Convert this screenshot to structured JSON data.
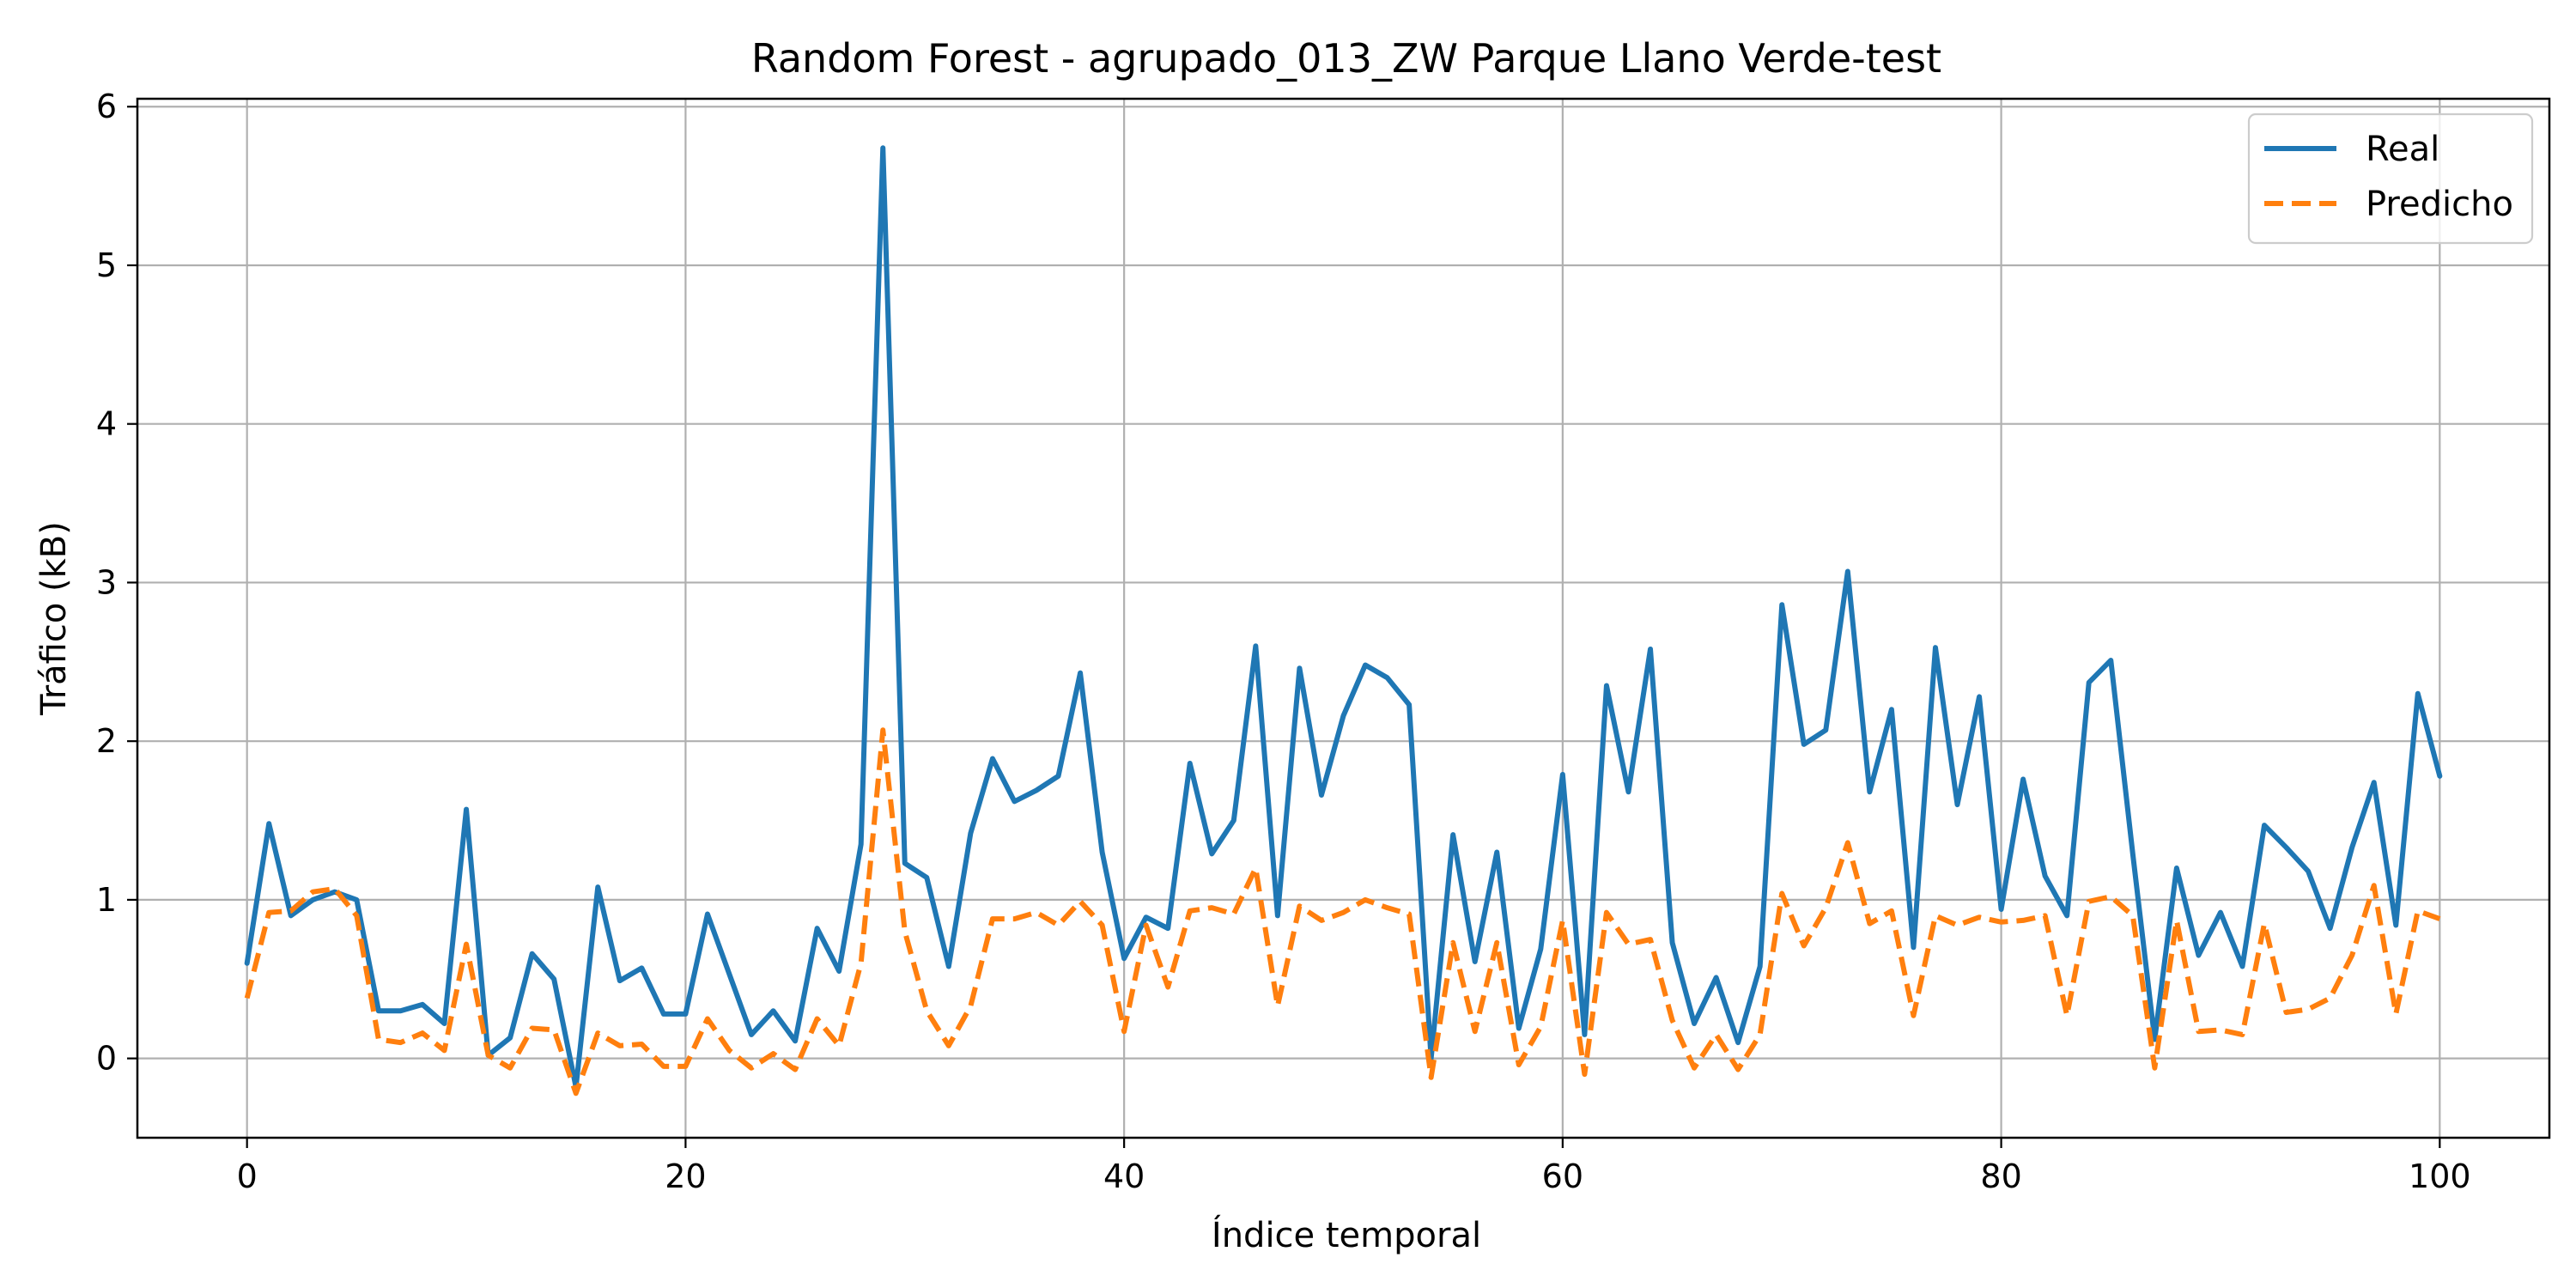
{
  "chart_data": {
    "type": "line",
    "title": "Random Forest - agrupado_013_ZW Parque Llano Verde-test",
    "xlabel": "Índice temporal",
    "ylabel": "Tráfico (kB)",
    "xlim": [
      -5,
      105
    ],
    "ylim": [
      -0.5,
      6.05
    ],
    "xticks": [
      0,
      20,
      40,
      60,
      80,
      100
    ],
    "yticks": [
      0,
      1,
      2,
      3,
      4,
      5,
      6
    ],
    "grid": true,
    "legend_position": "top-right",
    "x": [
      0,
      1,
      2,
      3,
      4,
      5,
      6,
      7,
      8,
      9,
      10,
      11,
      12,
      13,
      14,
      15,
      16,
      17,
      18,
      19,
      20,
      21,
      22,
      23,
      24,
      25,
      26,
      27,
      28,
      29,
      30,
      31,
      32,
      33,
      34,
      35,
      36,
      37,
      38,
      39,
      40,
      41,
      42,
      43,
      44,
      45,
      46,
      47,
      48,
      49,
      50,
      51,
      52,
      53,
      54,
      55,
      56,
      57,
      58,
      59,
      60,
      61,
      62,
      63,
      64,
      65,
      66,
      67,
      68,
      69,
      70,
      71,
      72,
      73,
      74,
      75,
      76,
      77,
      78,
      79,
      80,
      81,
      82,
      83,
      84,
      85,
      86,
      87,
      88,
      89,
      90,
      91,
      92,
      93,
      94,
      95,
      96,
      97,
      98,
      99,
      100
    ],
    "series": [
      {
        "name": "Real",
        "color": "#1f77b4",
        "style": "solid",
        "values": [
          0.6,
          1.48,
          0.9,
          1.0,
          1.05,
          1.0,
          0.3,
          0.3,
          0.34,
          0.22,
          1.57,
          0.02,
          0.13,
          0.66,
          0.5,
          -0.18,
          1.08,
          0.49,
          0.57,
          0.28,
          0.28,
          0.91,
          0.53,
          0.15,
          0.3,
          0.11,
          0.82,
          0.55,
          1.35,
          5.74,
          1.23,
          1.14,
          0.58,
          1.42,
          1.89,
          1.62,
          1.69,
          1.78,
          2.43,
          1.3,
          0.63,
          0.89,
          0.82,
          1.86,
          1.29,
          1.5,
          2.6,
          0.9,
          2.46,
          1.66,
          2.16,
          2.48,
          2.4,
          2.23,
          0.0,
          1.41,
          0.61,
          1.3,
          0.19,
          0.69,
          1.79,
          0.15,
          2.35,
          1.68,
          2.58,
          0.73,
          0.22,
          0.51,
          0.1,
          0.58,
          2.86,
          1.98,
          2.07,
          3.07,
          1.68,
          2.2,
          0.7,
          2.59,
          1.6,
          2.28,
          0.94,
          1.76,
          1.15,
          0.9,
          2.37,
          2.51,
          1.29,
          0.12,
          1.2,
          0.65,
          0.92,
          0.58,
          1.47,
          1.33,
          1.18,
          0.82,
          1.33,
          1.74,
          0.84,
          2.3,
          1.78
        ]
      },
      {
        "name": "Predicho",
        "color": "#ff7f0e",
        "style": "dashed",
        "values": [
          0.38,
          0.92,
          0.93,
          1.05,
          1.07,
          0.9,
          0.12,
          0.1,
          0.16,
          0.05,
          0.72,
          0.02,
          -0.06,
          0.19,
          0.18,
          -0.22,
          0.16,
          0.08,
          0.09,
          -0.05,
          -0.05,
          0.25,
          0.05,
          -0.06,
          0.03,
          -0.07,
          0.25,
          0.08,
          0.6,
          2.07,
          0.8,
          0.3,
          0.08,
          0.33,
          0.88,
          0.88,
          0.92,
          0.84,
          0.99,
          0.84,
          0.17,
          0.84,
          0.45,
          0.93,
          0.95,
          0.91,
          1.2,
          0.33,
          0.96,
          0.87,
          0.92,
          1.0,
          0.95,
          0.91,
          -0.12,
          0.73,
          0.17,
          0.73,
          -0.04,
          0.2,
          0.87,
          -0.1,
          0.92,
          0.72,
          0.75,
          0.24,
          -0.06,
          0.15,
          -0.07,
          0.15,
          1.04,
          0.71,
          0.95,
          1.36,
          0.85,
          0.93,
          0.27,
          0.9,
          0.84,
          0.89,
          0.86,
          0.87,
          0.9,
          0.27,
          0.99,
          1.02,
          0.9,
          -0.06,
          0.87,
          0.17,
          0.18,
          0.15,
          0.85,
          0.29,
          0.31,
          0.38,
          0.65,
          1.09,
          0.28,
          0.93,
          0.88
        ]
      }
    ]
  }
}
